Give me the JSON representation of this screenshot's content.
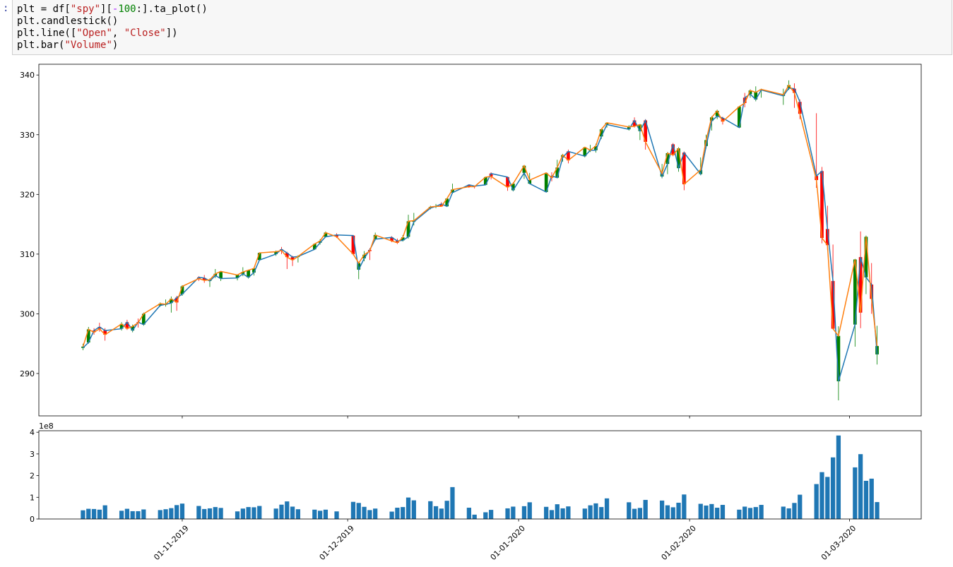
{
  "notebook": {
    "prompt": ":",
    "code": [
      "plt = df[\"spy\"][-100:].ta_plot()",
      "plt.candlestick()",
      "plt.line([\"Open\", \"Close\"])",
      "plt.bar(\"Volume\")"
    ]
  },
  "chart_data": [
    {
      "type": "candlestick",
      "x": [
        "2019-10-14",
        "2019-10-15",
        "2019-10-16",
        "2019-10-17",
        "2019-10-18",
        "2019-10-21",
        "2019-10-22",
        "2019-10-23",
        "2019-10-24",
        "2019-10-25",
        "2019-10-28",
        "2019-10-29",
        "2019-10-30",
        "2019-10-31",
        "2019-11-01",
        "2019-11-04",
        "2019-11-05",
        "2019-11-06",
        "2019-11-07",
        "2019-11-08",
        "2019-11-11",
        "2019-11-12",
        "2019-11-13",
        "2019-11-14",
        "2019-11-15",
        "2019-11-18",
        "2019-11-19",
        "2019-11-20",
        "2019-11-21",
        "2019-11-22",
        "2019-11-25",
        "2019-11-26",
        "2019-11-27",
        "2019-11-29",
        "2019-12-02",
        "2019-12-03",
        "2019-12-04",
        "2019-12-05",
        "2019-12-06",
        "2019-12-09",
        "2019-12-10",
        "2019-12-11",
        "2019-12-12",
        "2019-12-13",
        "2019-12-16",
        "2019-12-17",
        "2019-12-18",
        "2019-12-19",
        "2019-12-20",
        "2019-12-23",
        "2019-12-24",
        "2019-12-26",
        "2019-12-27",
        "2019-12-30",
        "2019-12-31",
        "2020-01-02",
        "2020-01-03",
        "2020-01-06",
        "2020-01-07",
        "2020-01-08",
        "2020-01-09",
        "2020-01-10",
        "2020-01-13",
        "2020-01-14",
        "2020-01-15",
        "2020-01-16",
        "2020-01-17",
        "2020-01-21",
        "2020-01-22",
        "2020-01-23",
        "2020-01-24",
        "2020-01-27",
        "2020-01-28",
        "2020-01-29",
        "2020-01-30",
        "2020-01-31",
        "2020-02-03",
        "2020-02-04",
        "2020-02-05",
        "2020-02-06",
        "2020-02-07",
        "2020-02-10",
        "2020-02-11",
        "2020-02-12",
        "2020-02-13",
        "2020-02-14",
        "2020-02-18",
        "2020-02-19",
        "2020-02-20",
        "2020-02-21",
        "2020-02-24",
        "2020-02-25",
        "2020-02-26",
        "2020-02-27",
        "2020-02-28",
        "2020-03-02",
        "2020-03-03",
        "2020-03-04",
        "2020-03-05",
        "2020-03-06"
      ],
      "open": [
        294.3,
        295.2,
        297.2,
        297.8,
        297.2,
        297.5,
        298.6,
        297.2,
        298.6,
        298.2,
        301.4,
        301.6,
        301.8,
        302.7,
        303.3,
        306.1,
        306.0,
        305.5,
        306.4,
        305.9,
        306.0,
        306.7,
        306.1,
        306.9,
        309.0,
        310.0,
        310.8,
        310.2,
        309.5,
        309.6,
        310.8,
        311.9,
        312.9,
        313.2,
        313.1,
        307.4,
        309.3,
        310.7,
        312.5,
        312.8,
        312.2,
        312.3,
        312.9,
        315.4,
        317.7,
        318.0,
        318.4,
        318.0,
        320.3,
        321.6,
        321.4,
        321.6,
        323.5,
        322.9,
        320.7,
        323.6,
        321.8,
        320.4,
        323.1,
        322.8,
        326.2,
        327.2,
        326.4,
        327.4,
        327.4,
        329.7,
        331.7,
        330.9,
        332.4,
        330.6,
        332.4,
        323.0,
        325.1,
        328.4,
        324.4,
        327.0,
        323.4,
        328.1,
        332.3,
        333.1,
        332.8,
        331.2,
        336.2,
        336.8,
        335.9,
        337.5,
        336.5,
        337.8,
        337.7,
        335.5,
        323.1,
        323.9,
        314.2,
        305.5,
        288.7,
        298.2,
        309.5,
        306.1,
        304.9,
        293.2
      ],
      "high": [
        295.0,
        297.8,
        297.6,
        298.5,
        297.6,
        298.6,
        299.0,
        298.2,
        299.2,
        300.2,
        301.9,
        302.4,
        302.9,
        303.0,
        304.8,
        306.3,
        306.5,
        305.9,
        307.5,
        307.2,
        306.6,
        307.8,
        307.4,
        307.8,
        310.3,
        310.6,
        311.2,
        310.4,
        309.7,
        309.8,
        311.8,
        312.5,
        313.8,
        313.5,
        313.2,
        308.6,
        310.5,
        311.0,
        313.6,
        313.0,
        312.6,
        313.2,
        316.6,
        316.9,
        318.1,
        318.4,
        318.7,
        319.3,
        321.8,
        321.7,
        321.4,
        322.9,
        323.7,
        323.0,
        322.0,
        324.9,
        323.6,
        323.7,
        323.7,
        325.8,
        326.8,
        327.5,
        327.9,
        328.3,
        328.5,
        330.9,
        332.0,
        331.6,
        332.9,
        331.8,
        332.6,
        325.1,
        327.1,
        328.6,
        327.9,
        327.2,
        326.2,
        330.0,
        333.1,
        334.2,
        333.0,
        334.8,
        337.0,
        337.6,
        338.1,
        337.7,
        337.7,
        339.1,
        338.6,
        335.9,
        333.6,
        324.6,
        318.1,
        311.6,
        297.9,
        309.2,
        313.8,
        313.1,
        308.5,
        298.0
      ],
      "low": [
        293.9,
        295.0,
        296.5,
        297.0,
        295.5,
        297.2,
        297.3,
        296.9,
        297.7,
        298.0,
        301.2,
        301.2,
        300.2,
        300.5,
        303.0,
        305.5,
        305.2,
        304.5,
        306.0,
        305.5,
        305.6,
        306.3,
        305.9,
        306.4,
        308.9,
        309.7,
        310.0,
        307.5,
        308.0,
        308.6,
        310.7,
        311.6,
        312.8,
        312.7,
        309.8,
        305.8,
        308.8,
        309.0,
        312.3,
        312.0,
        311.7,
        312.1,
        312.6,
        314.8,
        317.5,
        317.7,
        317.9,
        317.9,
        320.1,
        321.1,
        321.0,
        321.6,
        322.5,
        320.6,
        320.5,
        322.6,
        321.7,
        320.4,
        322.2,
        322.7,
        325.5,
        325.2,
        326.2,
        327.1,
        327.0,
        329.3,
        331.2,
        330.7,
        331.2,
        329.1,
        327.5,
        322.7,
        323.4,
        326.4,
        323.8,
        320.7,
        323.2,
        327.7,
        330.7,
        332.6,
        331.7,
        331.2,
        334.6,
        336.2,
        335.6,
        336.2,
        335.0,
        337.5,
        334.5,
        332.6,
        321.1,
        311.8,
        310.7,
        297.5,
        285.5,
        294.5,
        297.6,
        303.3,
        300.0,
        291.5
      ],
      "close": [
        294.5,
        297.4,
        296.9,
        297.5,
        296.5,
        298.3,
        297.5,
        297.9,
        298.5,
        300.0,
        301.7,
        301.6,
        302.5,
        301.9,
        304.6,
        305.9,
        305.6,
        305.7,
        306.7,
        307.1,
        306.5,
        307.0,
        307.3,
        307.6,
        310.2,
        310.4,
        310.6,
        309.5,
        309.0,
        309.6,
        311.7,
        312.2,
        313.6,
        312.9,
        310.0,
        308.5,
        309.9,
        310.5,
        313.2,
        312.2,
        311.9,
        312.8,
        315.5,
        315.6,
        317.9,
        318.0,
        318.0,
        319.3,
        320.8,
        321.3,
        321.3,
        322.9,
        323.0,
        321.2,
        321.8,
        324.8,
        322.4,
        323.6,
        322.8,
        324.5,
        326.6,
        325.7,
        327.9,
        327.4,
        328.1,
        330.9,
        332.0,
        331.3,
        331.4,
        331.7,
        328.8,
        323.5,
        326.9,
        326.6,
        327.7,
        321.7,
        324.1,
        329.1,
        332.9,
        334.0,
        332.2,
        334.7,
        335.3,
        337.4,
        337.1,
        337.6,
        336.7,
        338.3,
        337.0,
        333.5,
        322.4,
        312.7,
        311.5,
        297.5,
        296.3,
        309.1,
        300.2,
        312.9,
        302.5,
        294.6
      ],
      "open_color": "#1f77b4",
      "close_color": "#ff7f0e",
      "up_color": "green",
      "down_color": "red",
      "xlim": [
        "2019-10-06",
        "2020-03-14"
      ],
      "ylim": [
        282.9,
        341.8
      ],
      "yticks": [
        290,
        300,
        310,
        320,
        330,
        340
      ]
    },
    {
      "type": "bar",
      "x": [
        "2019-10-14",
        "2019-10-15",
        "2019-10-16",
        "2019-10-17",
        "2019-10-18",
        "2019-10-21",
        "2019-10-22",
        "2019-10-23",
        "2019-10-24",
        "2019-10-25",
        "2019-10-28",
        "2019-10-29",
        "2019-10-30",
        "2019-10-31",
        "2019-11-01",
        "2019-11-04",
        "2019-11-05",
        "2019-11-06",
        "2019-11-07",
        "2019-11-08",
        "2019-11-11",
        "2019-11-12",
        "2019-11-13",
        "2019-11-14",
        "2019-11-15",
        "2019-11-18",
        "2019-11-19",
        "2019-11-20",
        "2019-11-21",
        "2019-11-22",
        "2019-11-25",
        "2019-11-26",
        "2019-11-27",
        "2019-11-29",
        "2019-12-02",
        "2019-12-03",
        "2019-12-04",
        "2019-12-05",
        "2019-12-06",
        "2019-12-09",
        "2019-12-10",
        "2019-12-11",
        "2019-12-12",
        "2019-12-13",
        "2019-12-16",
        "2019-12-17",
        "2019-12-18",
        "2019-12-19",
        "2019-12-20",
        "2019-12-23",
        "2019-12-24",
        "2019-12-26",
        "2019-12-27",
        "2019-12-30",
        "2019-12-31",
        "2020-01-02",
        "2020-01-03",
        "2020-01-06",
        "2020-01-07",
        "2020-01-08",
        "2020-01-09",
        "2020-01-10",
        "2020-01-13",
        "2020-01-14",
        "2020-01-15",
        "2020-01-16",
        "2020-01-17",
        "2020-01-21",
        "2020-01-22",
        "2020-01-23",
        "2020-01-24",
        "2020-01-27",
        "2020-01-28",
        "2020-01-29",
        "2020-01-30",
        "2020-01-31",
        "2020-02-03",
        "2020-02-04",
        "2020-02-05",
        "2020-02-06",
        "2020-02-07",
        "2020-02-10",
        "2020-02-11",
        "2020-02-12",
        "2020-02-13",
        "2020-02-14",
        "2020-02-18",
        "2020-02-19",
        "2020-02-20",
        "2020-02-21",
        "2020-02-24",
        "2020-02-25",
        "2020-02-26",
        "2020-02-27",
        "2020-02-28",
        "2020-03-02",
        "2020-03-03",
        "2020-03-04",
        "2020-03-05",
        "2020-03-06"
      ],
      "values": [
        0.4,
        0.47,
        0.46,
        0.43,
        0.63,
        0.38,
        0.47,
        0.36,
        0.36,
        0.44,
        0.41,
        0.45,
        0.5,
        0.64,
        0.71,
        0.6,
        0.46,
        0.49,
        0.55,
        0.51,
        0.35,
        0.48,
        0.55,
        0.54,
        0.6,
        0.48,
        0.66,
        0.81,
        0.57,
        0.45,
        0.43,
        0.38,
        0.43,
        0.35,
        0.79,
        0.74,
        0.56,
        0.41,
        0.48,
        0.34,
        0.52,
        0.55,
        0.99,
        0.86,
        0.82,
        0.59,
        0.48,
        0.84,
        1.47,
        0.52,
        0.2,
        0.31,
        0.42,
        0.49,
        0.57,
        0.59,
        0.77,
        0.56,
        0.41,
        0.68,
        0.49,
        0.58,
        0.48,
        0.63,
        0.72,
        0.55,
        0.95,
        0.77,
        0.47,
        0.51,
        0.88,
        0.85,
        0.63,
        0.54,
        0.75,
        1.13,
        0.7,
        0.62,
        0.69,
        0.52,
        0.65,
        0.43,
        0.57,
        0.51,
        0.55,
        0.65,
        0.57,
        0.49,
        0.74,
        1.12,
        1.61,
        2.16,
        1.94,
        2.84,
        3.85,
        2.38,
        2.99,
        1.76,
        1.86,
        0.78
      ],
      "color": "#1f77b4",
      "xlim": [
        "2019-10-06",
        "2020-03-14"
      ],
      "xticks": [
        {
          "value": "2019-11-01",
          "label": "01-11-2019"
        },
        {
          "value": "2019-12-01",
          "label": "01-12-2019"
        },
        {
          "value": "2020-01-01",
          "label": "01-01-2020"
        },
        {
          "value": "2020-02-01",
          "label": "01-02-2020"
        },
        {
          "value": "2020-03-01",
          "label": "01-03-2020"
        }
      ],
      "ylim": [
        0,
        4.07
      ],
      "yticks": [
        0,
        1,
        2,
        3,
        4
      ],
      "y_offset_label": "1e8"
    }
  ]
}
